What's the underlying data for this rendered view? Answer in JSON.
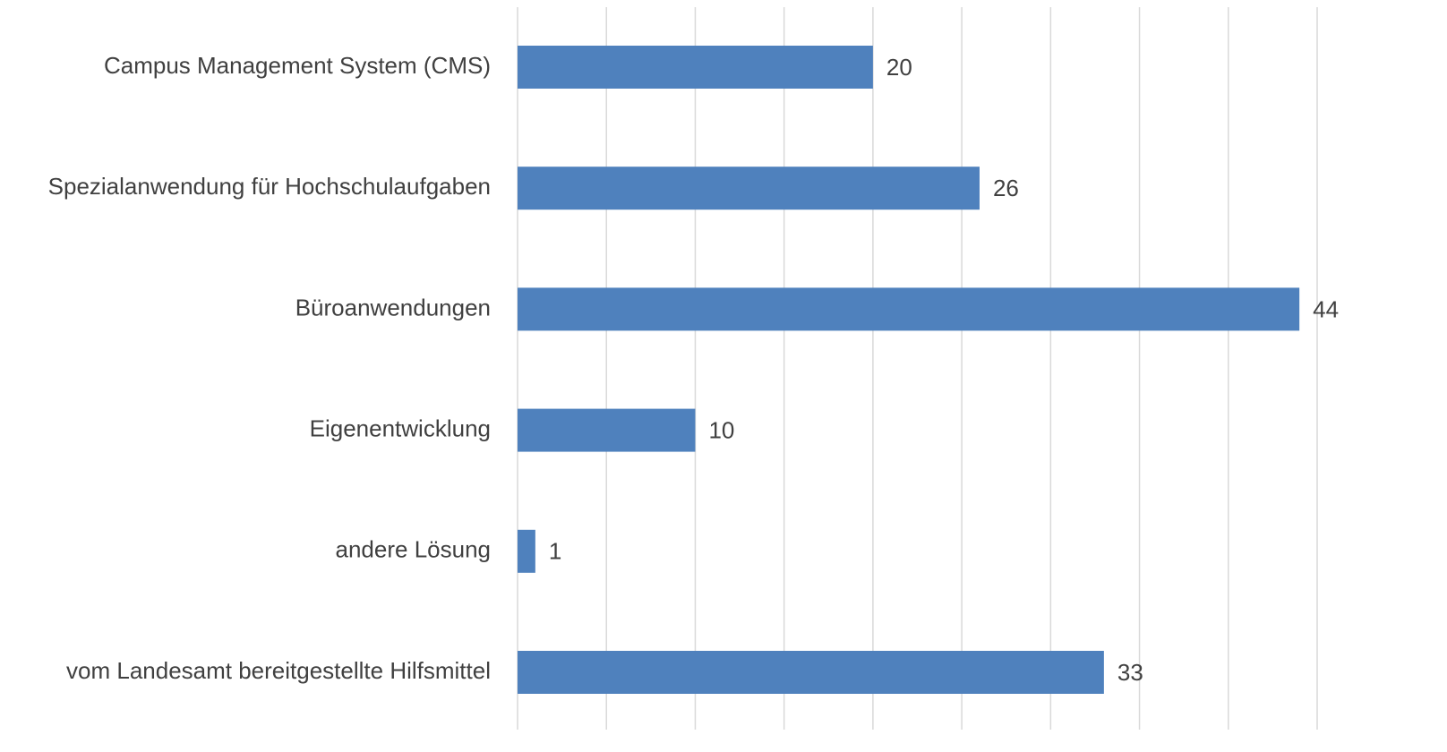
{
  "chart_data": {
    "type": "hbar",
    "categories": [
      "Campus Management System (CMS)",
      "Spezialanwendung für Hochschulaufgaben",
      "Büroanwendungen",
      "Eigenentwicklung",
      "andere Lösung",
      "vom Landesamt bereitgestellte Hilfsmittel"
    ],
    "values": [
      20,
      26,
      44,
      10,
      1,
      33
    ],
    "color": "#4f81bd",
    "xlim": [
      0,
      45
    ],
    "xticks": [
      0,
      5,
      10,
      15,
      20,
      25,
      30,
      35,
      40,
      45
    ],
    "grid": true
  }
}
